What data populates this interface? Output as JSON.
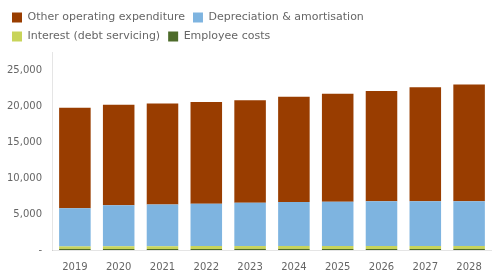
{
  "chart_data": {
    "type": "bar",
    "stacked": true,
    "categories": [
      "2019",
      "2020",
      "2021",
      "2022",
      "2023",
      "2024",
      "2025",
      "2026",
      "2027",
      "2028"
    ],
    "series": [
      {
        "name": "Employee costs",
        "color": "#4d6b2a",
        "values": [
          150,
          150,
          150,
          150,
          150,
          150,
          150,
          150,
          150,
          150
        ]
      },
      {
        "name": "Interest (debt servicing)",
        "color": "#c8d45a",
        "values": [
          350,
          380,
          380,
          390,
          400,
          410,
          410,
          410,
          410,
          410
        ]
      },
      {
        "name": "Depreciation & amortisation",
        "color": "#7eb4e0",
        "values": [
          5300,
          5700,
          5800,
          5900,
          6000,
          6100,
          6150,
          6200,
          6200,
          6200
        ]
      },
      {
        "name": "Other operating expenditure",
        "color": "#993d00",
        "values": [
          13950,
          13930,
          14020,
          14110,
          14250,
          14640,
          14990,
          15340,
          15840,
          16240
        ]
      }
    ],
    "ylim": [
      0,
      27500
    ],
    "yticks": [
      {
        "value": 0,
        "label": "-"
      },
      {
        "value": 5000,
        "label": "5,000"
      },
      {
        "value": 10000,
        "label": "10,000"
      },
      {
        "value": 15000,
        "label": "15,000"
      },
      {
        "value": 20000,
        "label": "20,000"
      },
      {
        "value": 25000,
        "label": "25,000"
      }
    ],
    "grid": false,
    "legend": "top"
  }
}
